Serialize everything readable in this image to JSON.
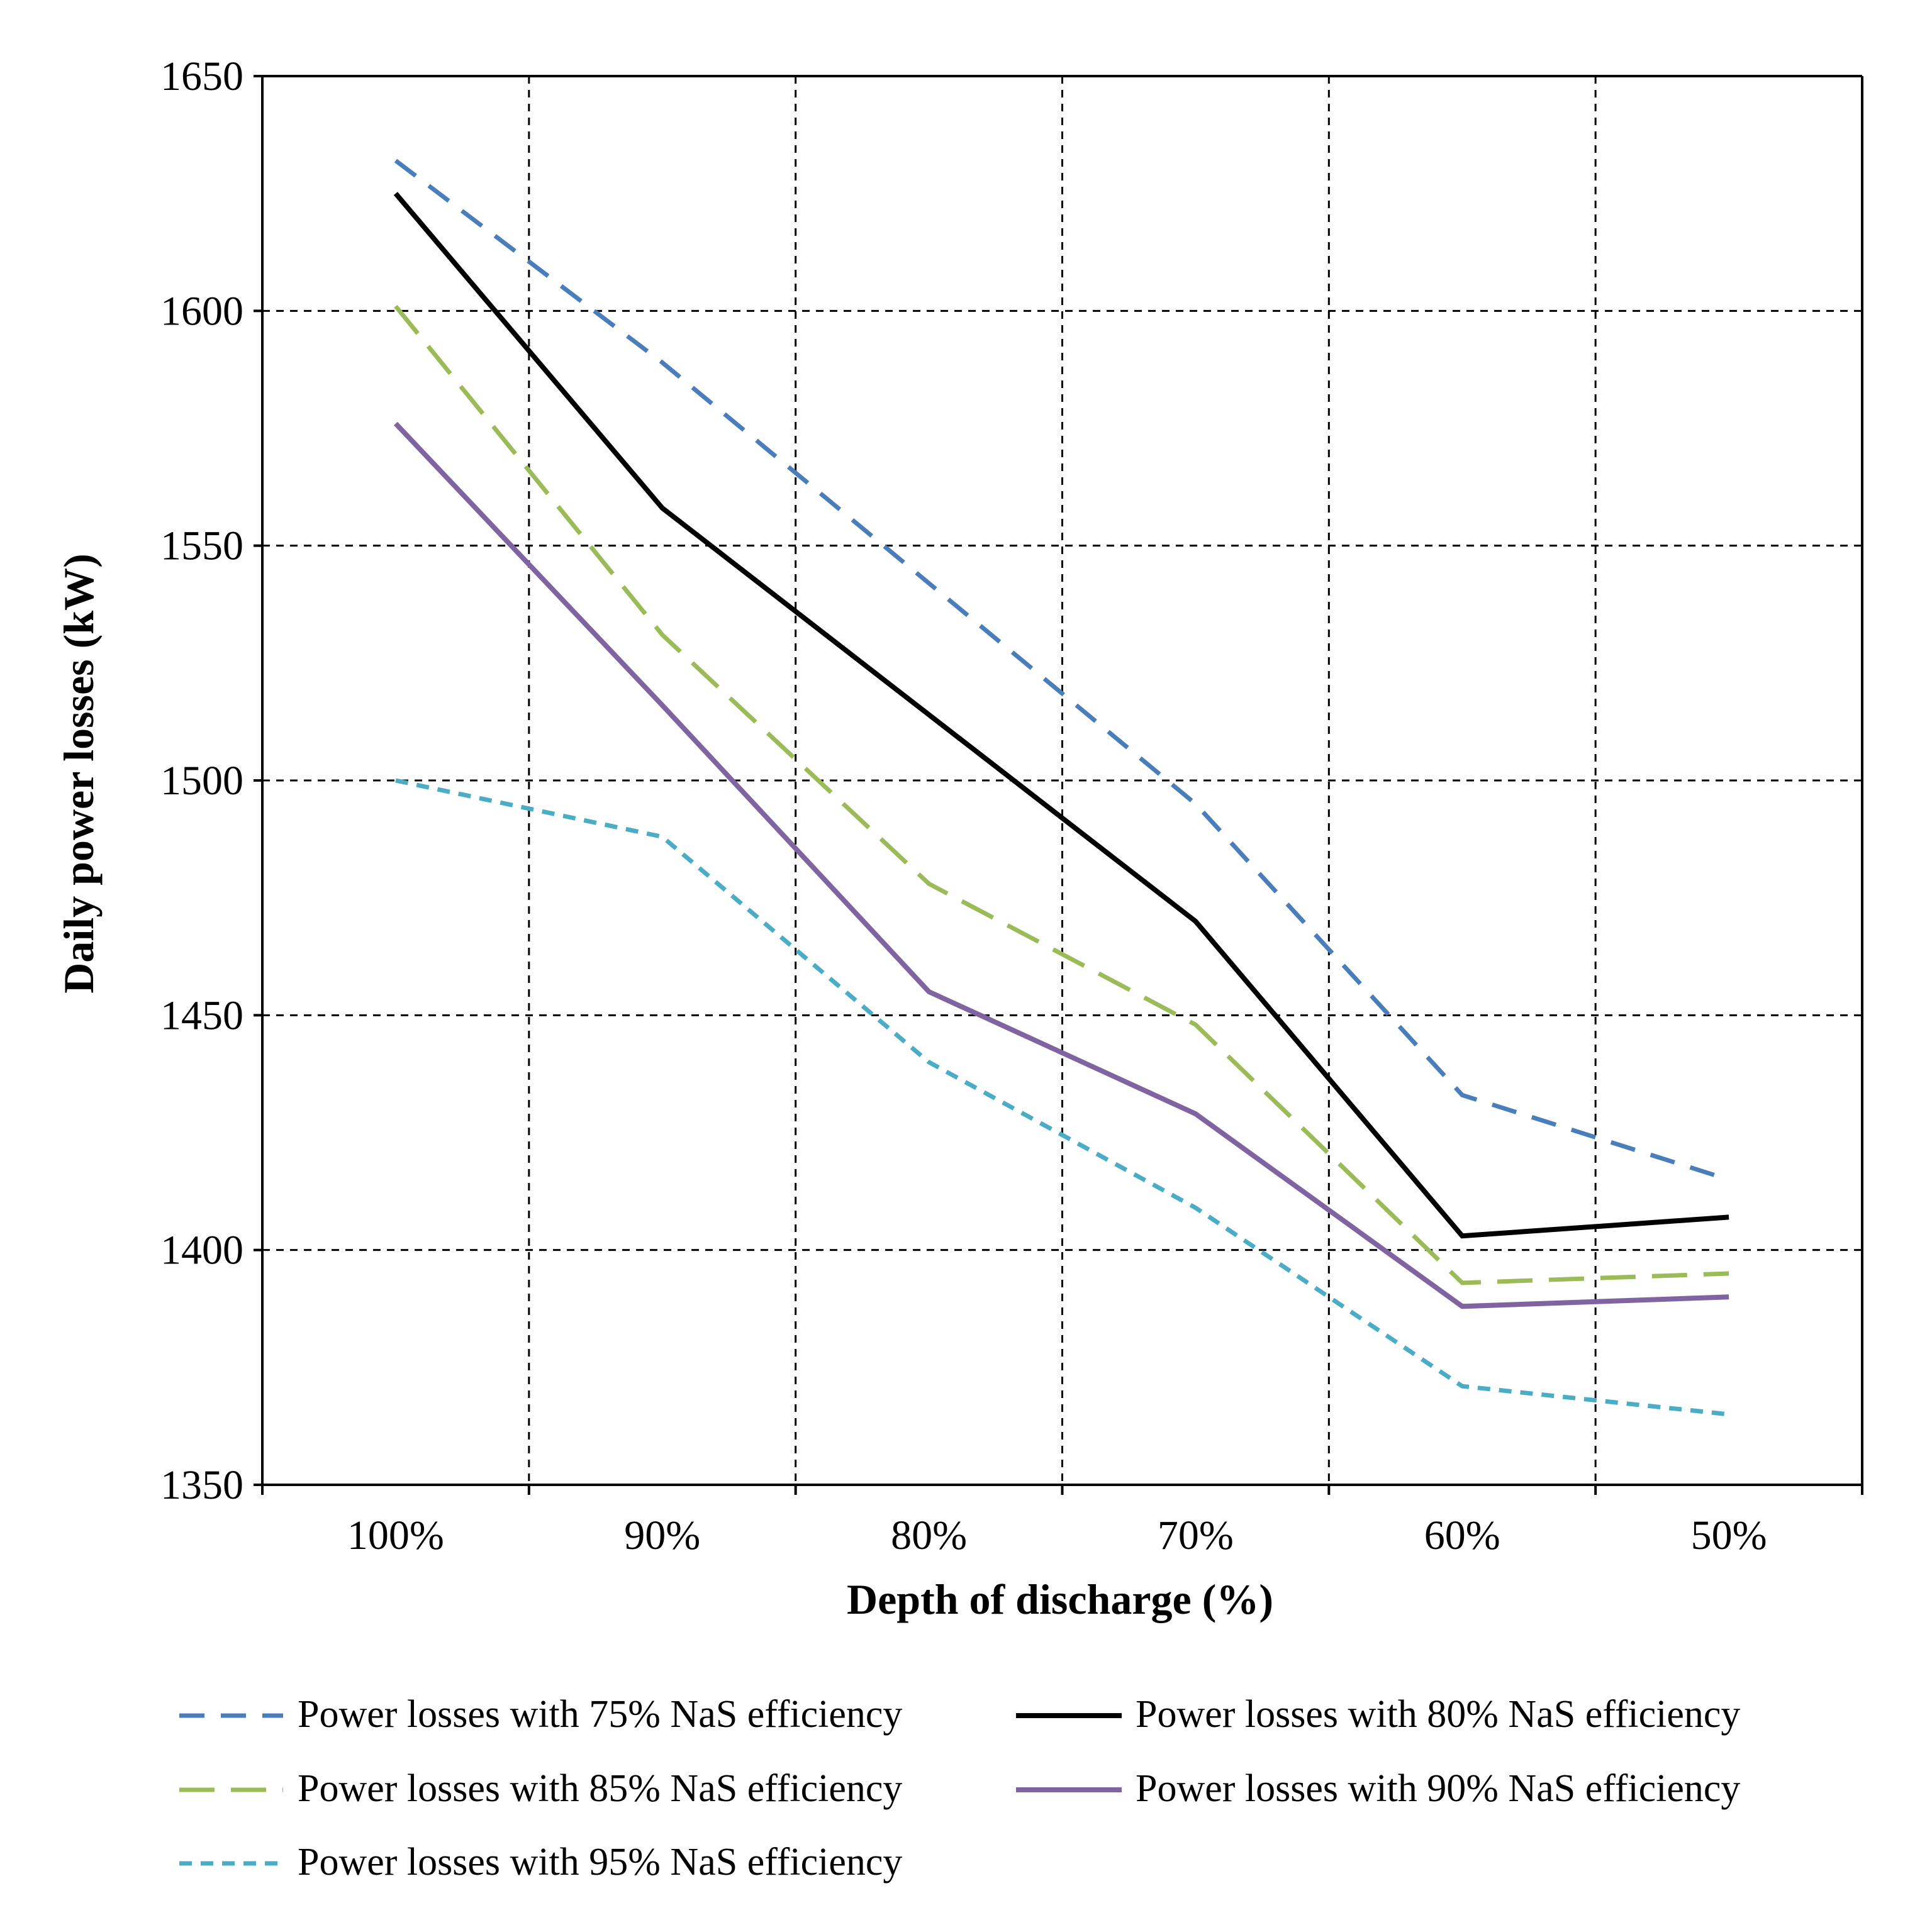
{
  "chart_data": {
    "type": "line",
    "title": "",
    "xlabel": "Depth of discharge (%)",
    "ylabel": "Daily power losses (kW)",
    "categories": [
      "100%",
      "90%",
      "80%",
      "70%",
      "60%",
      "50%"
    ],
    "ylim": [
      1350,
      1650
    ],
    "yticks": [
      1350,
      1400,
      1450,
      1500,
      1550,
      1600,
      1650
    ],
    "grid": true,
    "legend_position": "bottom",
    "series": [
      {
        "name": "Power losses with 75% NaS efficiency",
        "values": [
          1632,
          1589,
          1542,
          1495,
          1433,
          1415
        ],
        "color": "#4A7EBB",
        "style": "long-dash"
      },
      {
        "name": "Power losses with 80% NaS efficiency",
        "values": [
          1625,
          1558,
          1514,
          1470,
          1403,
          1407
        ],
        "color": "#000000",
        "style": "solid"
      },
      {
        "name": "Power losses with 85% NaS efficiency",
        "values": [
          1601,
          1531,
          1478,
          1448,
          1393,
          1395
        ],
        "color": "#9BBB59",
        "style": "dash"
      },
      {
        "name": "Power losses with 90% NaS efficiency",
        "values": [
          1576,
          1516,
          1455,
          1429,
          1388,
          1390
        ],
        "color": "#8064A2",
        "style": "solid"
      },
      {
        "name": "Power losses with 95% NaS efficiency",
        "values": [
          1500,
          1488,
          1440,
          1409,
          1371,
          1365
        ],
        "color": "#4BACC6",
        "style": "short-dash"
      }
    ]
  }
}
